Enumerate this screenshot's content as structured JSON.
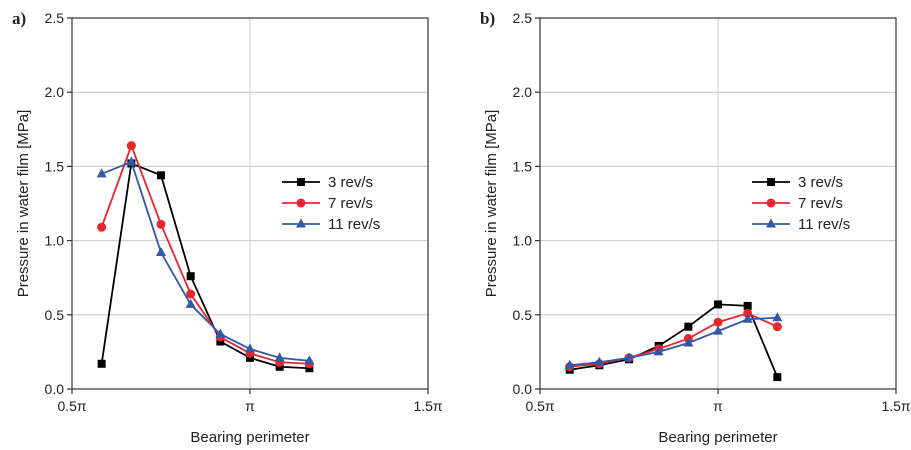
{
  "chart_data": [
    {
      "type": "line",
      "panel_label": "a)",
      "xlabel": "Bearing perimeter",
      "ylabel": "Pressure in water film [MPa]",
      "xlim": [
        0.5,
        1.5
      ],
      "ylim": [
        0.0,
        2.5
      ],
      "x_tick_values": [
        0.5,
        1.0,
        1.5
      ],
      "x_tick_labels": [
        "0.5π",
        "π",
        "1.5π"
      ],
      "y_tick_values": [
        0.0,
        0.5,
        1.0,
        1.5,
        2.0,
        2.5
      ],
      "y_tick_labels": [
        "0.0",
        "0.5",
        "1.0",
        "1.5",
        "2.0",
        "2.5"
      ],
      "grid": true,
      "legend_position": "center-right",
      "series": [
        {
          "name": "3 rev/s",
          "color": "#000000",
          "marker": "square",
          "x": [
            0.5833,
            0.6667,
            0.75,
            0.8333,
            0.9167,
            1.0,
            1.0833,
            1.1667
          ],
          "y": [
            0.17,
            1.52,
            1.44,
            0.76,
            0.32,
            0.21,
            0.15,
            0.14
          ]
        },
        {
          "name": "7 rev/s",
          "color": "#e8262d",
          "marker": "circle",
          "x": [
            0.5833,
            0.6667,
            0.75,
            0.8333,
            0.9167,
            1.0,
            1.0833,
            1.1667
          ],
          "y": [
            1.09,
            1.64,
            1.11,
            0.64,
            0.35,
            0.24,
            0.18,
            0.17
          ]
        },
        {
          "name": "11 rev/s",
          "color": "#3358a8",
          "marker": "triangle",
          "x": [
            0.5833,
            0.6667,
            0.75,
            0.8333,
            0.9167,
            1.0,
            1.0833,
            1.1667
          ],
          "y": [
            1.45,
            1.53,
            0.92,
            0.57,
            0.37,
            0.27,
            0.21,
            0.19
          ]
        }
      ]
    },
    {
      "type": "line",
      "panel_label": "b)",
      "xlabel": "Bearing perimeter",
      "ylabel": "Pressure in water film [MPa]",
      "xlim": [
        0.5,
        1.5
      ],
      "ylim": [
        0.0,
        2.5
      ],
      "x_tick_values": [
        0.5,
        1.0,
        1.5
      ],
      "x_tick_labels": [
        "0.5π",
        "π",
        "1.5π"
      ],
      "y_tick_values": [
        0.0,
        0.5,
        1.0,
        1.5,
        2.0,
        2.5
      ],
      "y_tick_labels": [
        "0.0",
        "0.5",
        "1.0",
        "1.5",
        "2.0",
        "2.5"
      ],
      "grid": true,
      "legend_position": "center-right",
      "series": [
        {
          "name": "3 rev/s",
          "color": "#000000",
          "marker": "square",
          "x": [
            0.5833,
            0.6667,
            0.75,
            0.8333,
            0.9167,
            1.0,
            1.0833,
            1.1667
          ],
          "y": [
            0.13,
            0.16,
            0.2,
            0.29,
            0.42,
            0.57,
            0.56,
            0.08
          ]
        },
        {
          "name": "7 rev/s",
          "color": "#e8262d",
          "marker": "circle",
          "x": [
            0.5833,
            0.6667,
            0.75,
            0.8333,
            0.9167,
            1.0,
            1.0833,
            1.1667
          ],
          "y": [
            0.15,
            0.17,
            0.21,
            0.27,
            0.34,
            0.45,
            0.51,
            0.42
          ]
        },
        {
          "name": "11 rev/s",
          "color": "#3358a8",
          "marker": "triangle",
          "x": [
            0.5833,
            0.6667,
            0.75,
            0.8333,
            0.9167,
            1.0,
            1.0833,
            1.1667
          ],
          "y": [
            0.16,
            0.18,
            0.21,
            0.25,
            0.31,
            0.39,
            0.47,
            0.48
          ]
        }
      ]
    }
  ]
}
